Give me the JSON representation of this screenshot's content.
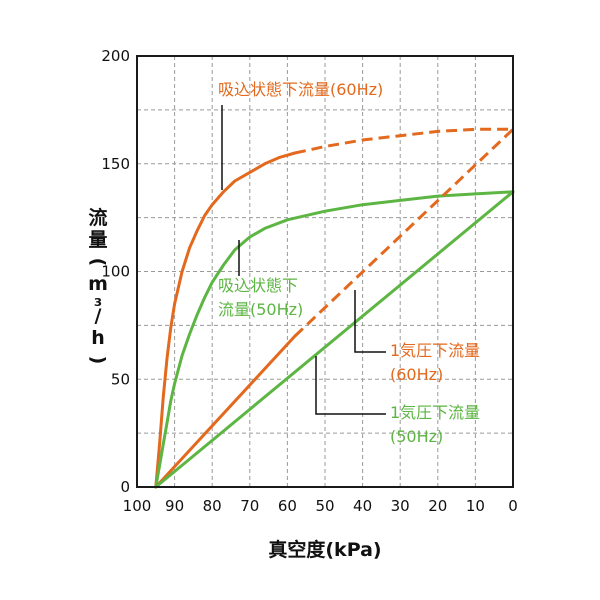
{
  "colors": {
    "series_60hz": "#e2691d",
    "series_50hz": "#5db543",
    "grid": "#9a9a9a",
    "axis": "#1a1a1a",
    "text": "#111111"
  },
  "chart_data": {
    "type": "line",
    "xlabel": "真空度(kPa)",
    "ylabel": "流量(m³/h)",
    "x_reversed": true,
    "xlim": [
      100,
      0
    ],
    "ylim": [
      0,
      200
    ],
    "x_ticks": [
      "100",
      "90",
      "80",
      "70",
      "60",
      "50",
      "40",
      "30",
      "20",
      "10",
      "0"
    ],
    "y_ticks": [
      "0",
      "50",
      "100",
      "150",
      "200"
    ],
    "grid": true,
    "series": [
      {
        "name": "吸込状態下流量(60Hz)",
        "color": "#e2691d",
        "style": "solid",
        "points": [
          [
            95,
            0
          ],
          [
            94,
            20
          ],
          [
            93,
            42
          ],
          [
            92,
            60
          ],
          [
            91,
            74
          ],
          [
            90,
            85
          ],
          [
            88,
            100
          ],
          [
            86,
            111
          ],
          [
            84,
            119
          ],
          [
            82,
            126
          ],
          [
            80,
            131
          ],
          [
            77,
            137
          ],
          [
            74,
            142
          ],
          [
            70,
            146
          ],
          [
            66,
            150
          ],
          [
            62,
            153
          ],
          [
            58,
            155
          ]
        ]
      },
      {
        "name": "吸込状態下流量(60Hz)",
        "color": "#e2691d",
        "style": "dashed",
        "points": [
          [
            58,
            155
          ],
          [
            50,
            158
          ],
          [
            40,
            161
          ],
          [
            30,
            163
          ],
          [
            20,
            165
          ],
          [
            10,
            166
          ],
          [
            0,
            166
          ]
        ]
      },
      {
        "name": "吸込状態下流量(50Hz)",
        "color": "#5db543",
        "style": "solid",
        "points": [
          [
            95,
            0
          ],
          [
            94,
            10
          ],
          [
            93,
            20
          ],
          [
            92,
            30
          ],
          [
            91,
            40
          ],
          [
            90,
            48
          ],
          [
            88,
            61
          ],
          [
            86,
            71
          ],
          [
            84,
            80
          ],
          [
            82,
            88
          ],
          [
            80,
            95
          ],
          [
            77,
            103
          ],
          [
            74,
            110
          ],
          [
            70,
            116
          ],
          [
            66,
            120
          ],
          [
            60,
            124
          ],
          [
            50,
            128
          ],
          [
            40,
            131
          ],
          [
            30,
            133
          ],
          [
            20,
            135
          ],
          [
            10,
            136
          ],
          [
            0,
            137
          ]
        ]
      },
      {
        "name": "1気圧下流量(60Hz)",
        "color": "#e2691d",
        "style": "solid",
        "points": [
          [
            95,
            0
          ],
          [
            58,
            70
          ]
        ]
      },
      {
        "name": "1気圧下流量(60Hz)",
        "color": "#e2691d",
        "style": "dashed",
        "points": [
          [
            58,
            70
          ],
          [
            0,
            166
          ]
        ]
      },
      {
        "name": "1気圧下流量(50Hz)",
        "color": "#5db543",
        "style": "solid",
        "points": [
          [
            95,
            0
          ],
          [
            0,
            137
          ]
        ]
      }
    ],
    "annotations": [
      {
        "lines": [
          "吸込状態下流量(60Hz)"
        ],
        "color": "#e2691d",
        "leader_to": [
          77,
          137
        ]
      },
      {
        "lines": [
          "吸込状態下",
          "流量(50Hz)"
        ],
        "color": "#5db543",
        "leader_to": [
          73,
          112
        ]
      },
      {
        "lines": [
          "1気圧下流量",
          "(60Hz)"
        ],
        "color": "#e2691d",
        "leader_to": [
          43,
          93
        ]
      },
      {
        "lines": [
          "1気圧下流量",
          "(50Hz)"
        ],
        "color": "#5db543",
        "leader_to": [
          53,
          60
        ]
      }
    ]
  }
}
